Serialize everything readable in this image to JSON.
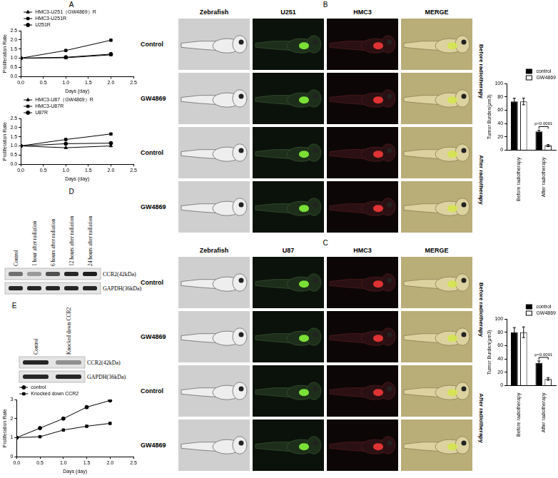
{
  "chart_data": [
    {
      "type": "line",
      "x": [
        0,
        1,
        2
      ],
      "series": [
        {
          "name": "HMC3-U251（GW4869）R",
          "color": "#000000",
          "marker": "triangle",
          "values": [
            1,
            1.02,
            1.18
          ]
        },
        {
          "name": "HMC3-U251R",
          "color": "#000000",
          "marker": "square",
          "values": [
            1,
            1.42,
            1.98
          ]
        },
        {
          "name": "U251R",
          "color": "#000000",
          "marker": "circle",
          "values": [
            1,
            1.05,
            1.22
          ]
        }
      ],
      "x_label": "Days (day)",
      "y_label": "Proliferation Rate",
      "xlim": [
        0,
        2.5
      ],
      "xticks": [
        {
          "value": 0,
          "label": "0.0"
        },
        0.5,
        {
          "value": 1,
          "label": "1.0"
        },
        1.5,
        {
          "value": 2,
          "label": "2.0"
        },
        2.5
      ],
      "ylim": [
        0,
        2.5
      ],
      "yticks": [
        {
          "value": 0,
          "label": "0.0"
        },
        0.5,
        {
          "value": 1,
          "label": "1.0"
        },
        1.5,
        {
          "value": 2,
          "label": "2.0"
        },
        2.5
      ],
      "grid": false,
      "legend": "upper left"
    },
    {
      "type": "line",
      "x": [
        0,
        1,
        2
      ],
      "series": [
        {
          "name": "HMC3-U87（GW4869）R",
          "color": "#000000",
          "marker": "triangle",
          "values": [
            1,
            0.9,
            1.0
          ]
        },
        {
          "name": "HMC3-U87R",
          "color": "#000000",
          "marker": "square",
          "values": [
            1,
            1.35,
            1.65
          ]
        },
        {
          "name": "U87R",
          "color": "#000000",
          "marker": "circle",
          "values": [
            1,
            1.12,
            1.15
          ]
        }
      ],
      "x_label": "Days (day)",
      "y_label": "Proliferation Rate",
      "xlim": [
        0,
        2.5
      ],
      "xticks": [
        {
          "value": 0,
          "label": "0.0"
        },
        0.5,
        {
          "value": 1,
          "label": "1.0"
        },
        1.5,
        {
          "value": 2,
          "label": "2.0"
        },
        2.5
      ],
      "ylim": [
        0,
        2.5
      ],
      "yticks": [
        {
          "value": 0,
          "label": "0.0"
        },
        0.5,
        {
          "value": 1,
          "label": "1.0"
        },
        1.5,
        {
          "value": 2,
          "label": "2.0"
        },
        2.5
      ],
      "grid": false,
      "legend": "upper left"
    },
    {
      "type": "bar",
      "categories": [
        "Before radiotherapy",
        "After radiotherapy"
      ],
      "series": [
        {
          "name": "control",
          "color": "#000000",
          "values": [
            73,
            28
          ],
          "errors": [
            5,
            2
          ]
        },
        {
          "name": "GW4869",
          "color": "#ffffff",
          "values": [
            73,
            7
          ],
          "errors": [
            5,
            1.5
          ]
        }
      ],
      "y_label": "Tumor Burden(μm3)",
      "ylim": [
        0,
        100
      ],
      "yticks": [
        0,
        20,
        40,
        60,
        80,
        100
      ],
      "annotations": [
        "p<0.0001"
      ],
      "grid": false,
      "legend": "upper right"
    },
    {
      "type": "bar",
      "categories": [
        "Before radiotherapy",
        "After radiotherapy"
      ],
      "series": [
        {
          "name": "control",
          "color": "#000000",
          "values": [
            80,
            34
          ],
          "errors": [
            7,
            3
          ]
        },
        {
          "name": "GW4869",
          "color": "#ffffff",
          "values": [
            80,
            10
          ],
          "errors": [
            8,
            2
          ]
        }
      ],
      "y_label": "Tumor Burden(μm3)",
      "ylim": [
        0,
        100
      ],
      "yticks": [
        0,
        20,
        40,
        60,
        80,
        100
      ],
      "annotations": [
        "p<0.0001"
      ],
      "grid": false,
      "legend": "upper right"
    },
    {
      "type": "line",
      "x": [
        0,
        0.5,
        1,
        1.5,
        2
      ],
      "series": [
        {
          "name": "control",
          "color": "#000000",
          "marker": "circle",
          "values": [
            1,
            1.5,
            2.0,
            2.6,
            2.95
          ]
        },
        {
          "name": "Knocked down CCR2",
          "color": "#000000",
          "marker": "square",
          "values": [
            1,
            1.05,
            1.4,
            1.6,
            1.75
          ]
        }
      ],
      "x_label": "Days (day)",
      "y_label": "Proliferation Rate",
      "xlim": [
        0,
        2.5
      ],
      "xticks": [
        {
          "value": 0,
          "label": "0.0"
        },
        0.5,
        {
          "value": 1,
          "label": "1.0"
        },
        1.5,
        {
          "value": 2,
          "label": "2.0"
        },
        2.5
      ],
      "ylim": [
        0,
        3
      ],
      "yticks": [
        0,
        1,
        2,
        3
      ],
      "grid": false,
      "legend": "upper left"
    }
  ],
  "figure": {
    "panel_labels": [
      "A",
      "B",
      "C",
      "D",
      "E"
    ],
    "grids": [
      {
        "columns": [
          "Zebrafish",
          "U251",
          "HMC3",
          "MERGE"
        ],
        "rows": [
          "Control",
          "GW4869",
          "Control",
          "GW4869"
        ],
        "groups": [
          "Before radiotherapy",
          "After radiotherapy"
        ]
      },
      {
        "columns": [
          "Zebrafish",
          "U87",
          "HMC3",
          "MERGE"
        ],
        "rows": [
          "Control",
          "GW4869",
          "Control",
          "GW4869"
        ],
        "groups": [
          "Before radiotherapy",
          "After radiotherapy"
        ]
      }
    ],
    "blots": [
      {
        "lanes": [
          "Control",
          "1 hour after radiation",
          "6 hours after radiation",
          "12 hours after radiation",
          "24 hours after radiation"
        ],
        "bands": [
          {
            "name": "CCR2(42kDa)",
            "intensity": [
              0.55,
              0.35,
              0.7,
              0.9,
              0.95
            ]
          },
          {
            "name": "GAPDH(36kDa)",
            "intensity": [
              0.9,
              0.9,
              0.9,
              0.9,
              0.9
            ]
          }
        ]
      },
      {
        "lanes": [
          "Control",
          "Knocked down CCR2"
        ],
        "bands": [
          {
            "name": "CCR2(42kDa)",
            "intensity": [
              0.9,
              0.4
            ]
          },
          {
            "name": "GAPDH(36kDa)",
            "intensity": [
              0.9,
              0.9
            ]
          }
        ]
      }
    ]
  }
}
